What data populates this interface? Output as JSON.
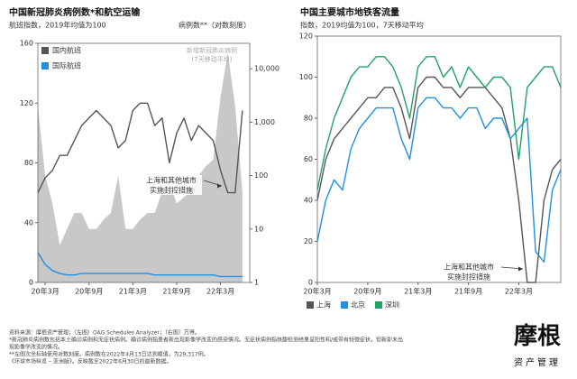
{
  "chart_data": [
    {
      "type": "line",
      "title": "中国新冠肺炎病例数*和航空运输",
      "subtitle": "航班指数，2019年均值为100",
      "y2_label": "病例数**（对数刻度）",
      "x": [
        "2020-02",
        "2020-03",
        "2020-04",
        "2020-05",
        "2020-06",
        "2020-07",
        "2020-08",
        "2020-09",
        "2020-10",
        "2020-11",
        "2020-12",
        "2021-01",
        "2021-02",
        "2021-03",
        "2021-04",
        "2021-05",
        "2021-06",
        "2021-07",
        "2021-08",
        "2021-09",
        "2021-10",
        "2021-11",
        "2021-12",
        "2022-01",
        "2022-02",
        "2022-03",
        "2022-04",
        "2022-05",
        "2022-06"
      ],
      "series": [
        {
          "name": "新增新冠肺炎病例",
          "name_note": "(7天移动平均)",
          "kind": "area",
          "axis": "y2",
          "color": "#c8c8c8",
          "values": [
            2000,
            100,
            30,
            5,
            10,
            20,
            20,
            10,
            10,
            15,
            20,
            100,
            10,
            10,
            15,
            20,
            20,
            50,
            80,
            30,
            40,
            50,
            100,
            150,
            200,
            3000,
            20000,
            2000,
            50
          ]
        },
        {
          "name": "国内航班",
          "color": "#555555",
          "values": [
            60,
            70,
            75,
            85,
            85,
            95,
            105,
            110,
            115,
            110,
            105,
            90,
            95,
            115,
            120,
            120,
            105,
            110,
            80,
            100,
            110,
            95,
            105,
            100,
            95,
            75,
            60,
            60,
            115
          ]
        },
        {
          "name": "国际航班",
          "color": "#1e90e6",
          "values": [
            20,
            12,
            8,
            6,
            5,
            5,
            6,
            6,
            6,
            6,
            6,
            6,
            6,
            6,
            6,
            6,
            5,
            5,
            5,
            5,
            5,
            5,
            5,
            5,
            5,
            4,
            4,
            4,
            4
          ]
        }
      ],
      "xlim": [
        "2020-02",
        "2022-07"
      ],
      "xticks": [
        {
          "value": "2020-03",
          "label": "20年3月"
        },
        {
          "value": "2020-09",
          "label": "20年9月"
        },
        {
          "value": "2021-03",
          "label": "21年3月"
        },
        {
          "value": "2021-09",
          "label": "21年9月"
        },
        {
          "value": "2022-03",
          "label": "22年3月"
        }
      ],
      "ylim": [
        0,
        160
      ],
      "yticks": [
        0,
        40,
        80,
        120,
        160
      ],
      "y2lim": [
        1,
        30000
      ],
      "y2scale": "log",
      "y2ticks": [
        1,
        10,
        100,
        {
          "value": 1000,
          "label": "1,000"
        },
        {
          "value": 10000,
          "label": "10,000"
        }
      ],
      "legend": "top-left",
      "annotation": [
        "上海和其他城市",
        "实施封控措施"
      ]
    },
    {
      "type": "line",
      "title": "中国主要城市地铁客流量",
      "subtitle": "指数，2019均值为100，7天移动平均",
      "x": [
        "2020-03",
        "2020-04",
        "2020-05",
        "2020-06",
        "2020-07",
        "2020-08",
        "2020-09",
        "2020-10",
        "2020-11",
        "2020-12",
        "2021-01",
        "2021-02",
        "2021-03",
        "2021-04",
        "2021-05",
        "2021-06",
        "2021-07",
        "2021-08",
        "2021-09",
        "2021-10",
        "2021-11",
        "2021-12",
        "2022-01",
        "2022-02",
        "2022-03",
        "2022-04",
        "2022-05",
        "2022-06",
        "2022-07",
        "2022-08"
      ],
      "series": [
        {
          "name": "上海",
          "color": "#555555",
          "values": [
            40,
            60,
            70,
            75,
            80,
            85,
            90,
            90,
            95,
            95,
            85,
            70,
            95,
            100,
            100,
            95,
            95,
            90,
            95,
            95,
            95,
            90,
            85,
            70,
            40,
            0,
            0,
            40,
            55,
            60
          ]
        },
        {
          "name": "北京",
          "color": "#1e90e6",
          "values": [
            20,
            40,
            50,
            45,
            65,
            75,
            80,
            85,
            85,
            85,
            70,
            60,
            85,
            90,
            90,
            85,
            85,
            80,
            85,
            85,
            75,
            80,
            80,
            70,
            75,
            80,
            15,
            10,
            45,
            55
          ]
        },
        {
          "name": "深圳",
          "color": "#1fa463",
          "values": [
            45,
            65,
            80,
            90,
            100,
            105,
            105,
            110,
            110,
            105,
            95,
            80,
            105,
            110,
            110,
            100,
            105,
            95,
            105,
            100,
            95,
            100,
            100,
            95,
            60,
            95,
            100,
            105,
            105,
            95
          ]
        }
      ],
      "xlim": [
        "2020-03",
        "2022-08"
      ],
      "xticks": [
        {
          "value": "2020-03",
          "label": "20年3月"
        },
        {
          "value": "2020-09",
          "label": "20年9月"
        },
        {
          "value": "2021-03",
          "label": "21年3月"
        },
        {
          "value": "2021-09",
          "label": "21年9月"
        },
        {
          "value": "2022-03",
          "label": "22年3月"
        }
      ],
      "ylim": [
        0,
        120
      ],
      "yticks": [
        0,
        20,
        40,
        60,
        80,
        100,
        120
      ],
      "legend": "bottom-left",
      "annotation": [
        "上海和其他城市",
        "实施封控措施"
      ]
    }
  ],
  "footnotes": [
    "资料来源：摩根资产管理；（左图）OAG Schedules Analyzer；（右图）万得。",
    "*新冠肺炎病例数包括本土确诊病例和无症状病例。确诊病例指患者新出现影像学改变的感染情况。无症状病例指核酸检测结果呈阳性和/或带有轻微症状，但新即未出",
    "现影像学改变的情况。",
    "**左图次坐标轴使用对数刻度。病例数在2022年4月13日达到峰值，为29,317例。",
    "《环球市场纵览 – 亚洲版》。反映截至2022年6月30日的最新数据。"
  ],
  "logo": {
    "name": "摩根",
    "sub": "资产管理"
  }
}
